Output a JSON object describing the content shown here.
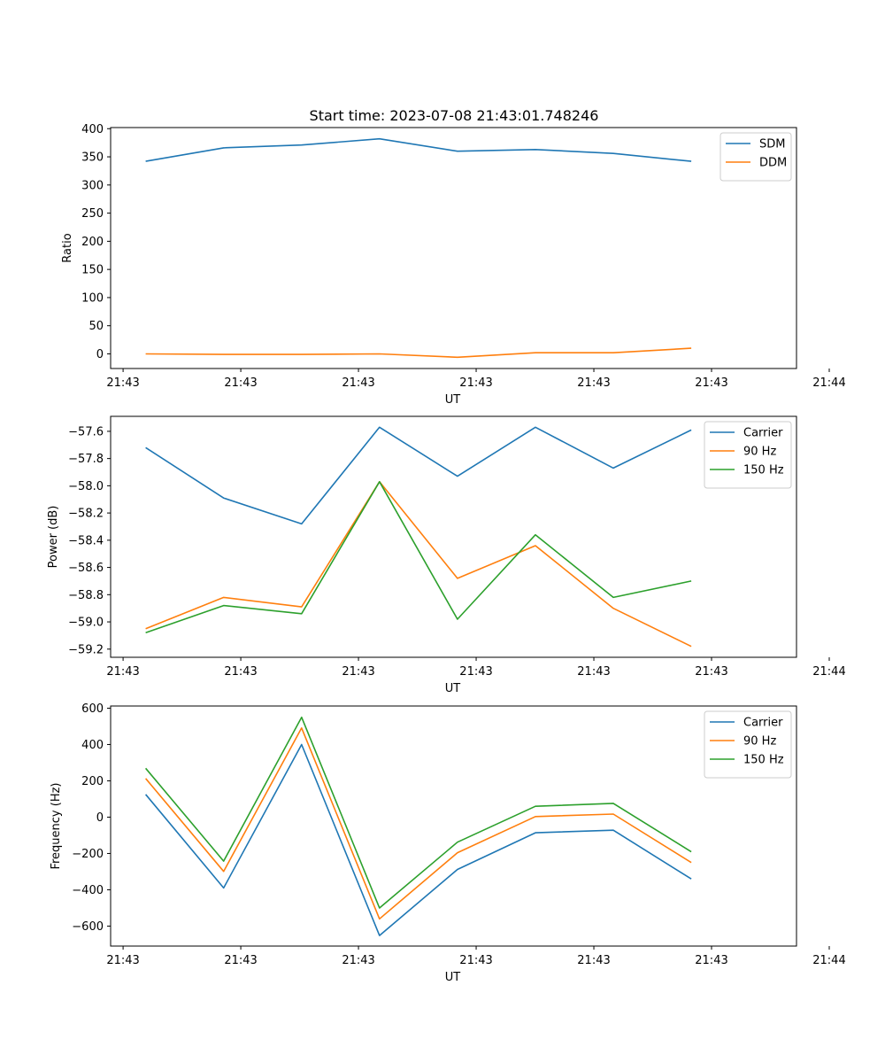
{
  "figure_title": "Start time: 2023-07-08 21:43:01.748246",
  "colors": {
    "blue": "#1f77b4",
    "orange": "#ff7f0e",
    "green": "#2ca02c"
  },
  "chart_data": [
    {
      "type": "line",
      "title": "Start time: 2023-07-08 21:43:01.748246",
      "xlabel": "UT",
      "ylabel": "Ratio",
      "x": [
        1,
        2,
        3,
        4,
        5,
        6,
        7,
        8
      ],
      "xlim": [
        0.55,
        9.35
      ],
      "xticks": [
        0.71,
        2.22,
        3.73,
        5.24,
        6.75,
        8.26,
        9.77
      ],
      "xtick_labels": [
        "21:43",
        "21:43",
        "21:43",
        "21:43",
        "21:43",
        "21:43",
        "21:44"
      ],
      "ylim": [
        -26,
        402
      ],
      "yticks": [
        0,
        50,
        100,
        150,
        200,
        250,
        300,
        350,
        400
      ],
      "ytick_labels": [
        "0",
        "50",
        "100",
        "150",
        "200",
        "250",
        "300",
        "350",
        "400"
      ],
      "legend": "top-right",
      "series": [
        {
          "name": "SDM",
          "color": "#1f77b4",
          "values": [
            342,
            366,
            371,
            382,
            360,
            363,
            356,
            342
          ]
        },
        {
          "name": "DDM",
          "color": "#ff7f0e",
          "values": [
            0,
            -1,
            -1,
            0,
            -6,
            2,
            2,
            10
          ]
        }
      ]
    },
    {
      "type": "line",
      "title": "",
      "xlabel": "UT",
      "ylabel": "Power (dB)",
      "x": [
        1,
        2,
        3,
        4,
        5,
        6,
        7,
        8
      ],
      "xlim": [
        0.55,
        9.35
      ],
      "xticks": [
        0.71,
        2.22,
        3.73,
        5.24,
        6.75,
        8.26,
        9.77
      ],
      "xtick_labels": [
        "21:43",
        "21:43",
        "21:43",
        "21:43",
        "21:43",
        "21:43",
        "21:44"
      ],
      "ylim": [
        -59.26,
        -57.49
      ],
      "yticks": [
        -59.2,
        -59.0,
        -58.8,
        -58.6,
        -58.4,
        -58.2,
        -58.0,
        -57.8,
        -57.6
      ],
      "ytick_labels": [
        "−59.2",
        "−59.0",
        "−58.8",
        "−58.6",
        "−58.4",
        "−58.2",
        "−58.0",
        "−57.8",
        "−57.6"
      ],
      "legend": "top-right",
      "series": [
        {
          "name": "Carrier",
          "color": "#1f77b4",
          "values": [
            -57.72,
            -58.09,
            -58.28,
            -57.57,
            -57.93,
            -57.57,
            -57.87,
            -57.59
          ]
        },
        {
          "name": "90 Hz",
          "color": "#ff7f0e",
          "values": [
            -59.05,
            -58.82,
            -58.89,
            -57.97,
            -58.68,
            -58.44,
            -58.9,
            -59.18
          ]
        },
        {
          "name": "150 Hz",
          "color": "#2ca02c",
          "values": [
            -59.08,
            -58.88,
            -58.94,
            -57.97,
            -58.98,
            -58.36,
            -58.82,
            -58.7
          ]
        }
      ]
    },
    {
      "type": "line",
      "title": "",
      "xlabel": "UT",
      "ylabel": "Frequency (Hz)",
      "x": [
        1,
        2,
        3,
        4,
        5,
        6,
        7,
        8
      ],
      "xlim": [
        0.55,
        9.35
      ],
      "xticks": [
        0.71,
        2.22,
        3.73,
        5.24,
        6.75,
        8.26,
        9.77
      ],
      "xtick_labels": [
        "21:43",
        "21:43",
        "21:43",
        "21:43",
        "21:43",
        "21:43",
        "21:44"
      ],
      "ylim": [
        -710,
        612
      ],
      "yticks": [
        -600,
        -400,
        -200,
        0,
        200,
        400,
        600
      ],
      "ytick_labels": [
        "−600",
        "−400",
        "−200",
        "0",
        "200",
        "400",
        "600"
      ],
      "legend": "top-right",
      "series": [
        {
          "name": "Carrier",
          "color": "#1f77b4",
          "values": [
            125,
            -390,
            400,
            -652,
            -288,
            -86,
            -72,
            -340
          ]
        },
        {
          "name": "90 Hz",
          "color": "#ff7f0e",
          "values": [
            213,
            -299,
            491,
            -560,
            -196,
            3,
            17,
            -250
          ]
        },
        {
          "name": "150 Hz",
          "color": "#2ca02c",
          "values": [
            269,
            -242,
            550,
            -500,
            -138,
            60,
            76,
            -191
          ]
        }
      ]
    }
  ]
}
